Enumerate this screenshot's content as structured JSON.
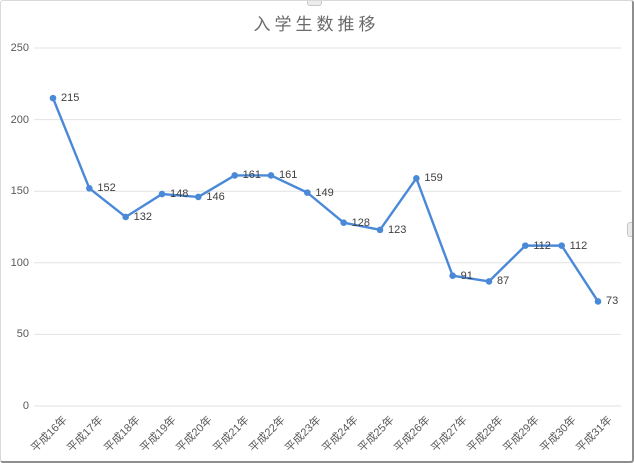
{
  "chart_data": {
    "type": "line",
    "title": "入学生数推移",
    "categories": [
      "平成16年",
      "平成17年",
      "平成18年",
      "平成19年",
      "平成20年",
      "平成21年",
      "平成22年",
      "平成23年",
      "平成24年",
      "平成25年",
      "平成26年",
      "平成27年",
      "平成28年",
      "平成29年",
      "平成30年",
      "平成31年"
    ],
    "values": [
      215,
      152,
      132,
      148,
      146,
      161,
      161,
      149,
      128,
      123,
      159,
      91,
      87,
      112,
      112,
      73
    ],
    "xlabel": "",
    "ylabel": "",
    "ylim": [
      0,
      250
    ],
    "yticks": [
      0,
      50,
      100,
      150,
      200,
      250
    ],
    "grid": true,
    "legend": "none",
    "data_labels": true,
    "colors": {
      "line": "#4a89d8",
      "marker": "#4a89d8",
      "gridline": "#e2e2e2",
      "axis_text": "#595959",
      "data_label_text": "#3f3f3f",
      "title_text": "#6b6b6b",
      "background": "#ffffff"
    }
  }
}
